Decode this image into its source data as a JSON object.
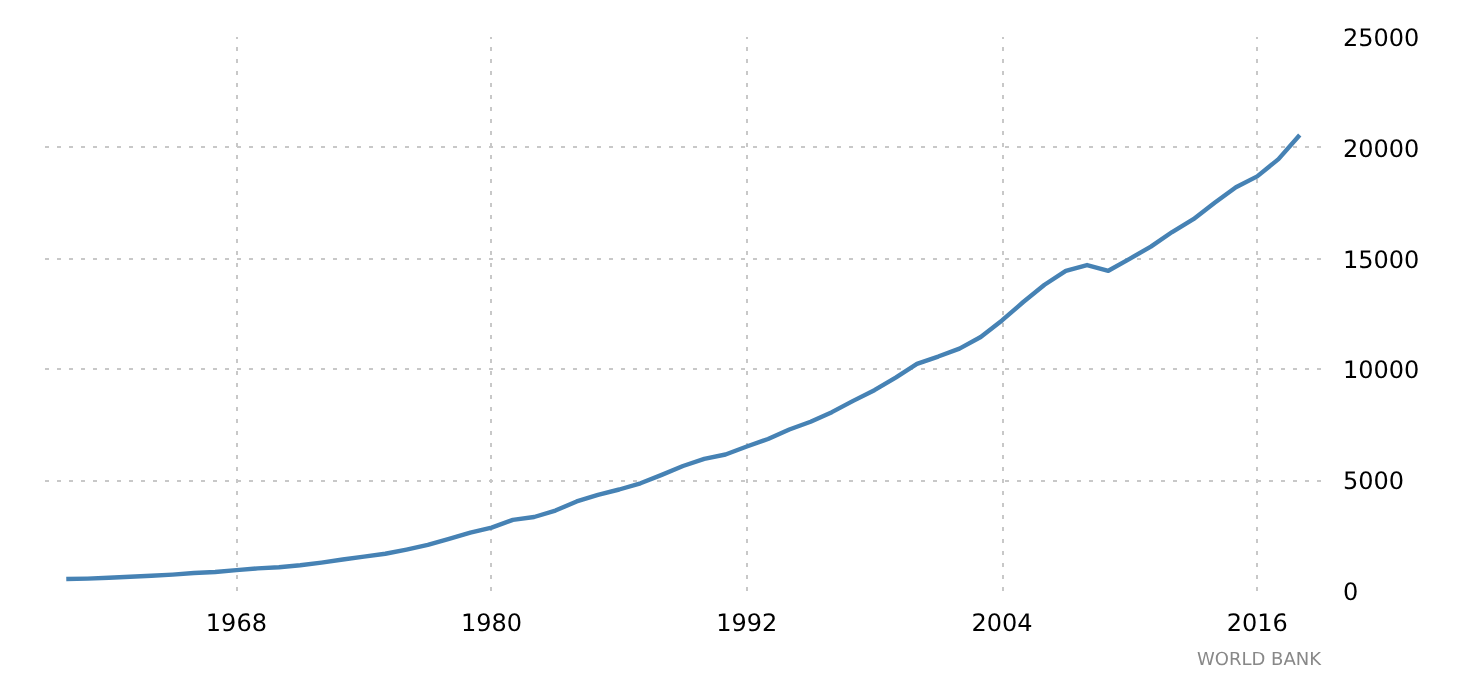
{
  "chart_data": {
    "type": "line",
    "x": [
      1960,
      1961,
      1962,
      1963,
      1964,
      1965,
      1966,
      1967,
      1968,
      1969,
      1970,
      1971,
      1972,
      1973,
      1974,
      1975,
      1976,
      1977,
      1978,
      1979,
      1980,
      1981,
      1982,
      1983,
      1984,
      1985,
      1986,
      1987,
      1988,
      1989,
      1990,
      1991,
      1992,
      1993,
      1994,
      1995,
      1996,
      1997,
      1998,
      1999,
      2000,
      2001,
      2002,
      2003,
      2004,
      2005,
      2006,
      2007,
      2008,
      2009,
      2010,
      2011,
      2012,
      2013,
      2014,
      2015,
      2016,
      2017,
      2018
    ],
    "series": [
      {
        "color": "#4682b4",
        "values": [
          540,
          560,
          600,
          640,
          690,
          740,
          810,
          860,
          940,
          1020,
          1070,
          1160,
          1280,
          1420,
          1550,
          1680,
          1870,
          2080,
          2350,
          2630,
          2860,
          3210,
          3340,
          3630,
          4040,
          4340,
          4580,
          4860,
          5240,
          5640,
          5960,
          6160,
          6520,
          6860,
          7290,
          7640,
          8070,
          8580,
          9060,
          9630,
          10250,
          10580,
          10940,
          11460,
          12210,
          13040,
          13820,
          14450,
          14710,
          14450,
          14990,
          15540,
          16200,
          16780,
          17520,
          18220,
          18710,
          19490,
          20580
        ]
      }
    ],
    "xlim": [
      1959,
      2019
    ],
    "xticks": [
      1968,
      1980,
      1992,
      2004,
      2016
    ],
    "ylim": [
      0,
      25000
    ],
    "yticks": [
      0,
      5000,
      10000,
      15000,
      20000,
      25000
    ],
    "grid": true,
    "line_style": "solid",
    "annotations": [
      "WORLD BANK"
    ]
  }
}
